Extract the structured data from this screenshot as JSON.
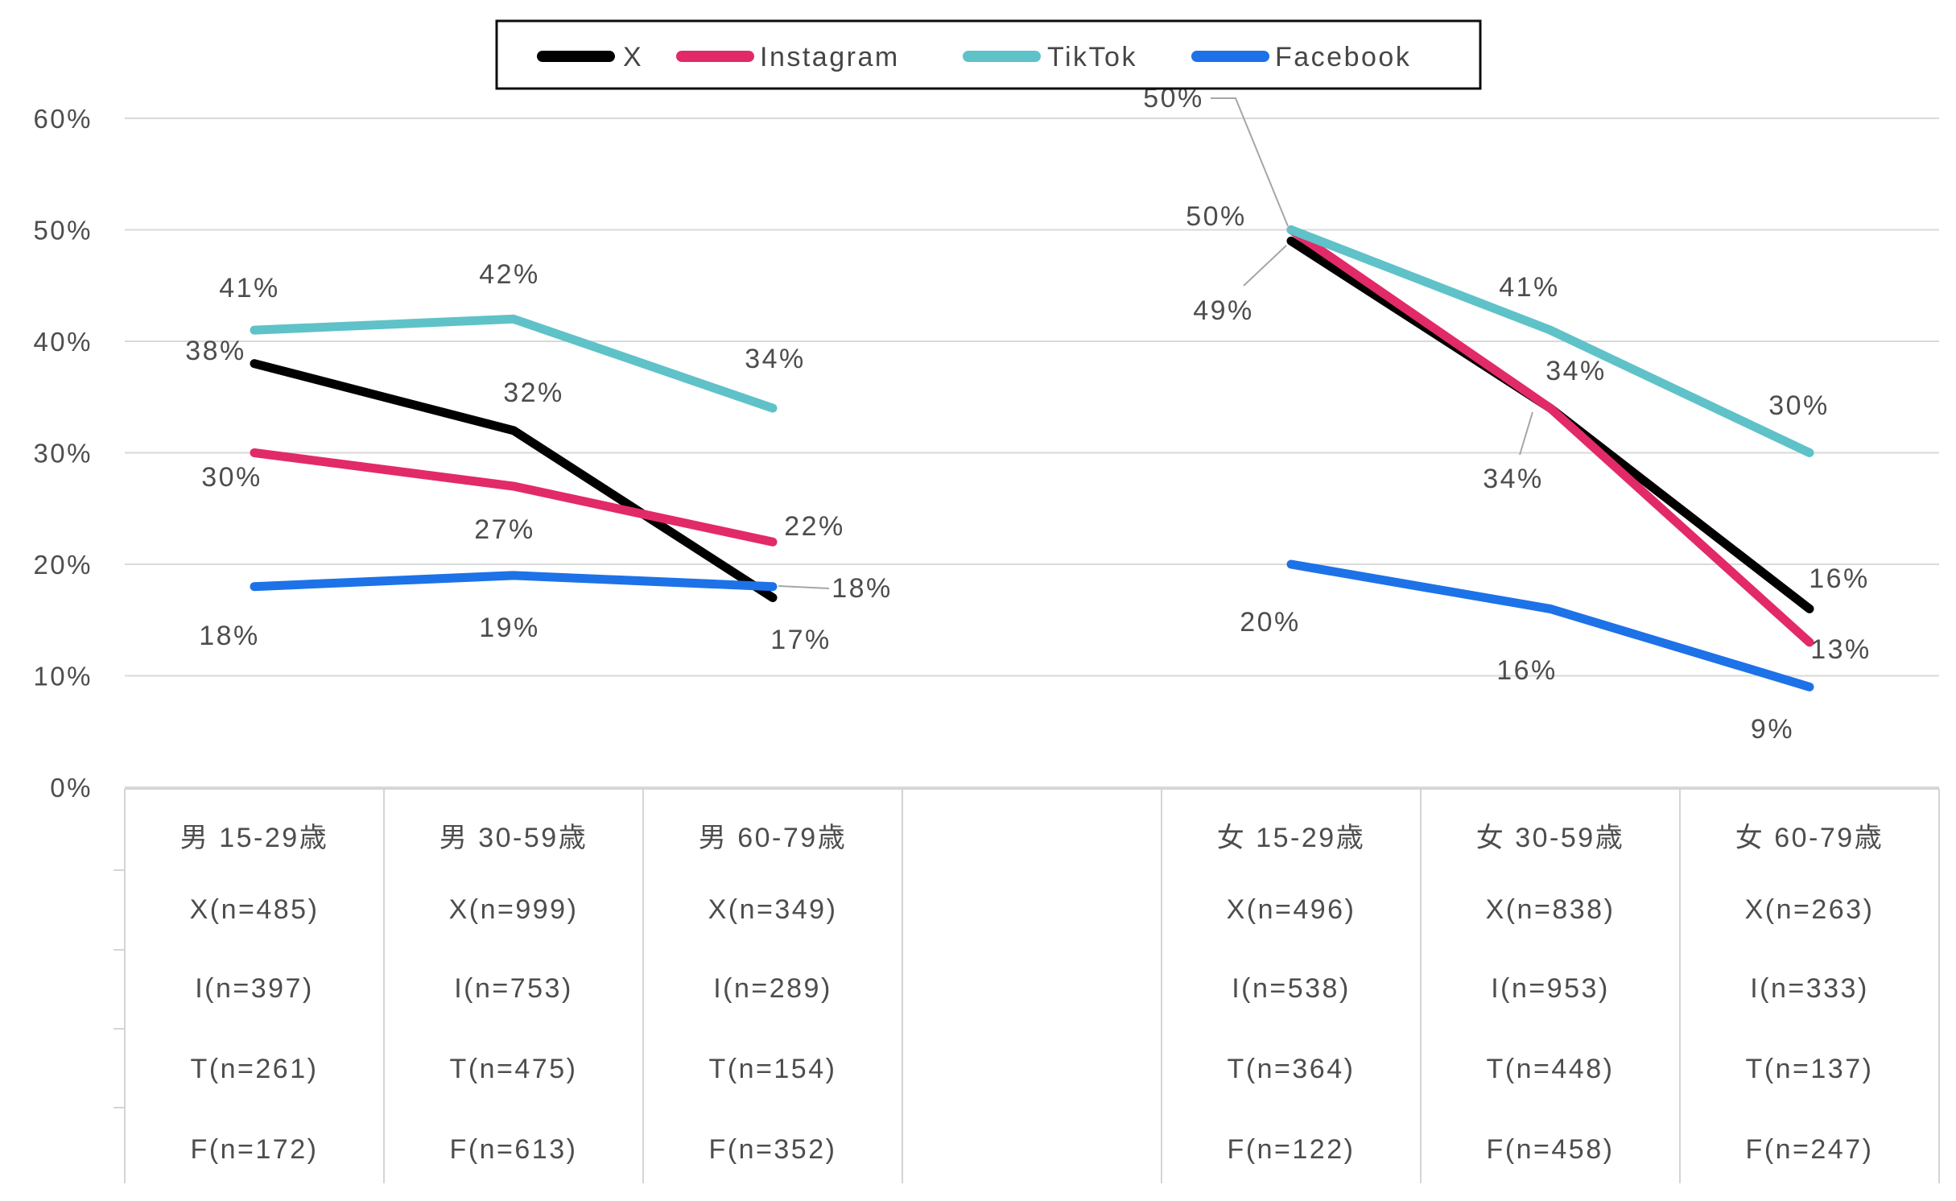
{
  "chart_data": {
    "type": "line",
    "title": "",
    "unit": "%",
    "grid": true,
    "legend_position": "top",
    "ylim": [
      0,
      60
    ],
    "ytick_step": 10,
    "y_ticks": [
      "60%",
      "50%",
      "40%",
      "30%",
      "20%",
      "10%",
      "0%"
    ],
    "categories": [
      "男 15-29歳",
      "男 30-59歳",
      "男 60-79歳",
      "",
      "女 15-29歳",
      "女 30-59歳",
      "女 60-79歳"
    ],
    "sample_sizes": [
      [
        "X(n=485)",
        "I(n=397)",
        "T(n=261)",
        "F(n=172)"
      ],
      [
        "X(n=999)",
        "I(n=753)",
        "T(n=475)",
        "F(n=613)"
      ],
      [
        "X(n=349)",
        "I(n=289)",
        "T(n=154)",
        "F(n=352)"
      ],
      [],
      [
        "X(n=496)",
        "I(n=538)",
        "T(n=364)",
        "F(n=122)"
      ],
      [
        "X(n=838)",
        "I(n=953)",
        "T(n=448)",
        "F(n=458)"
      ],
      [
        "X(n=263)",
        "I(n=333)",
        "T(n=137)",
        "F(n=247)"
      ]
    ],
    "series": [
      {
        "name": "X",
        "color": "#000000",
        "values": [
          38,
          32,
          17,
          null,
          49,
          34,
          16
        ]
      },
      {
        "name": "Instagram",
        "color": "#e22a68",
        "values": [
          30,
          27,
          22,
          null,
          50,
          34,
          13
        ]
      },
      {
        "name": "TikTok",
        "color": "#5fc2c8",
        "values": [
          41,
          42,
          34,
          null,
          50,
          41,
          30
        ]
      },
      {
        "name": "Facebook",
        "color": "#1d72e8",
        "values": [
          18,
          19,
          18,
          null,
          20,
          16,
          9
        ]
      }
    ],
    "colors": {
      "grid": "#d9d9d9",
      "text": "#4d4d4d",
      "leader": "#a6a6a6",
      "legend_border": "#0d0d0d",
      "background": "#ffffff"
    }
  }
}
